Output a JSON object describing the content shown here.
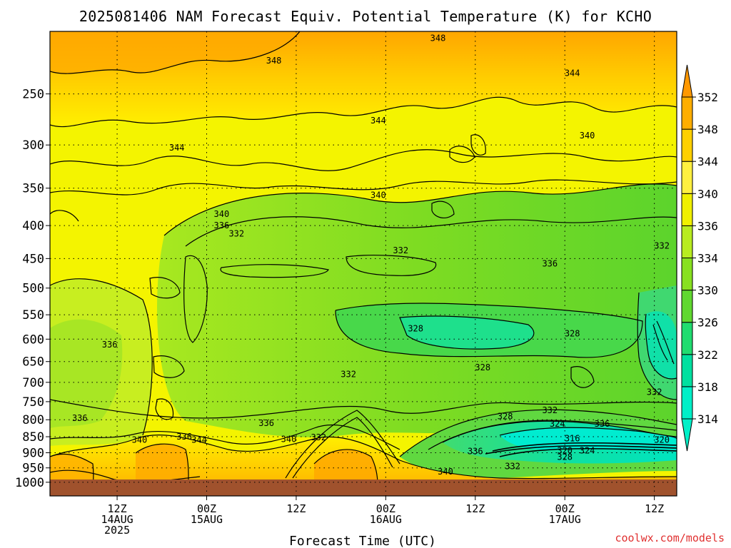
{
  "chart_data": {
    "type": "heatmap",
    "title": "2025081406 NAM Forecast Equiv. Potential Temperature (K) for KCHO",
    "xlabel": "Forecast Time (UTC)",
    "ylabel": "",
    "credit": "coolwx.com/models",
    "y_axis": {
      "quantity": "pressure level (hPa)",
      "scale": "log",
      "inverted": true,
      "range": [
        200,
        1050
      ],
      "ticks": [
        250,
        300,
        350,
        400,
        450,
        500,
        550,
        600,
        650,
        700,
        750,
        800,
        850,
        900,
        950,
        1000
      ]
    },
    "x_axis": {
      "quantity": "forecast hour",
      "range": [
        -3,
        81
      ],
      "ticks": [
        {
          "hour": 6,
          "lines": [
            "12Z",
            "14AUG",
            "2025"
          ]
        },
        {
          "hour": 18,
          "lines": [
            "00Z",
            "15AUG"
          ]
        },
        {
          "hour": 30,
          "lines": [
            "12Z"
          ]
        },
        {
          "hour": 42,
          "lines": [
            "00Z",
            "16AUG"
          ]
        },
        {
          "hour": 54,
          "lines": [
            "12Z"
          ]
        },
        {
          "hour": 66,
          "lines": [
            "00Z",
            "17AUG"
          ]
        },
        {
          "hour": 78,
          "lines": [
            "12Z"
          ]
        }
      ]
    },
    "grid": true,
    "colorbar": {
      "position": "right",
      "levels": [
        314,
        318,
        322,
        326,
        330,
        334,
        336,
        340,
        344,
        348,
        352
      ],
      "colors": [
        "#00f0c8",
        "#00e0a0",
        "#20dc70",
        "#60d830",
        "#88e020",
        "#b8ec20",
        "#f0f000",
        "#fff040",
        "#ffd000",
        "#ffae00",
        "#ff9800"
      ],
      "extend": "both"
    },
    "contour_labels": [
      {
        "text": "348",
        "hour": 27,
        "p": 222
      },
      {
        "text": "348",
        "hour": 49,
        "p": 205
      },
      {
        "text": "344",
        "hour": 67,
        "p": 232
      },
      {
        "text": "344",
        "hour": 41,
        "p": 275
      },
      {
        "text": "344",
        "hour": 14,
        "p": 303
      },
      {
        "text": "340",
        "hour": 69,
        "p": 290
      },
      {
        "text": "340",
        "hour": 41,
        "p": 359
      },
      {
        "text": "340",
        "hour": 20,
        "p": 384
      },
      {
        "text": "336",
        "hour": 20,
        "p": 400
      },
      {
        "text": "332",
        "hour": 22,
        "p": 412
      },
      {
        "text": "332",
        "hour": 44,
        "p": 437
      },
      {
        "text": "332",
        "hour": 79,
        "p": 430
      },
      {
        "text": "336",
        "hour": 64,
        "p": 458
      },
      {
        "text": "328",
        "hour": 46,
        "p": 578
      },
      {
        "text": "328",
        "hour": 67,
        "p": 588
      },
      {
        "text": "336",
        "hour": 5,
        "p": 612
      },
      {
        "text": "332",
        "hour": 37,
        "p": 680
      },
      {
        "text": "328",
        "hour": 55,
        "p": 664
      },
      {
        "text": "332",
        "hour": 78,
        "p": 725
      },
      {
        "text": "336",
        "hour": 1,
        "p": 795
      },
      {
        "text": "336",
        "hour": 26,
        "p": 810
      },
      {
        "text": "332",
        "hour": 64,
        "p": 773
      },
      {
        "text": "328",
        "hour": 58,
        "p": 790
      },
      {
        "text": "324",
        "hour": 65,
        "p": 812
      },
      {
        "text": "336",
        "hour": 71,
        "p": 812
      },
      {
        "text": "336",
        "hour": 15,
        "p": 850
      },
      {
        "text": "340",
        "hour": 9,
        "p": 860
      },
      {
        "text": "344",
        "hour": 17,
        "p": 860
      },
      {
        "text": "340",
        "hour": 29,
        "p": 857
      },
      {
        "text": "332",
        "hour": 33,
        "p": 852
      },
      {
        "text": "316",
        "hour": 67,
        "p": 855
      },
      {
        "text": "320",
        "hour": 79,
        "p": 860
      },
      {
        "text": "336",
        "hour": 54,
        "p": 895
      },
      {
        "text": "320",
        "hour": 66,
        "p": 893
      },
      {
        "text": "324",
        "hour": 69,
        "p": 893
      },
      {
        "text": "328",
        "hour": 66,
        "p": 914
      },
      {
        "text": "332",
        "hour": 59,
        "p": 945
      },
      {
        "text": "340",
        "hour": 50,
        "p": 963
      }
    ],
    "terrain_below_hpa": 1000
  },
  "colors": {
    "terrain": "#a0522d",
    "background": "#ffffff",
    "contour_line": "#000000"
  }
}
